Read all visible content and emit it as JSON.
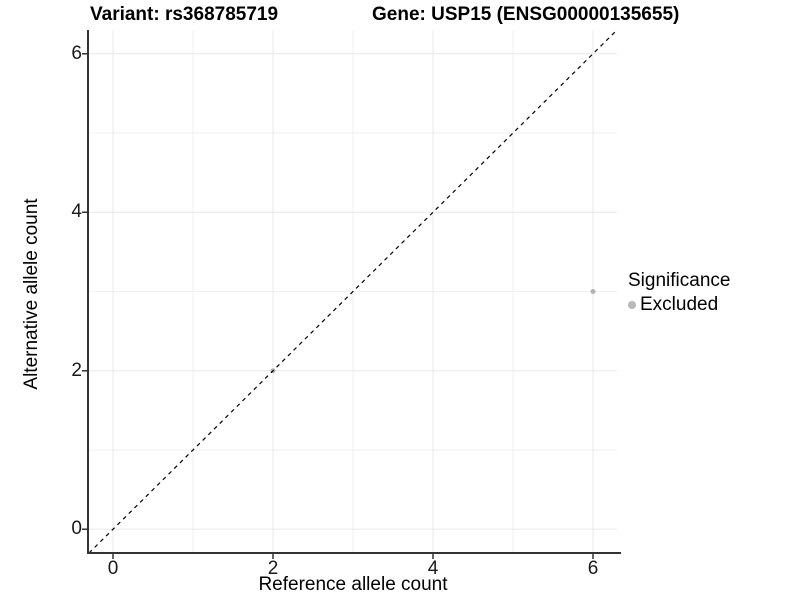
{
  "titles": {
    "variant": "Variant: rs368785719",
    "gene": "Gene: USP15 (ENSG00000135655)"
  },
  "chart_data": {
    "type": "scatter",
    "xlabel": "Reference allele count",
    "ylabel": "Alternative allele count",
    "xlim": [
      -0.3,
      6.3
    ],
    "ylim": [
      -0.3,
      6.3
    ],
    "xticks": [
      0,
      2,
      4,
      6
    ],
    "yticks": [
      0,
      2,
      4,
      6
    ],
    "xminor": [
      1,
      3,
      5
    ],
    "yminor": [
      1,
      3,
      5
    ],
    "grid": true,
    "identity_line": {
      "style": "dashed",
      "color": "#000000",
      "x1": -0.3,
      "y1": -0.3,
      "x2": 6.3,
      "y2": 6.3
    },
    "series": [
      {
        "name": "Excluded",
        "color": "#b3b3b3",
        "points": [
          {
            "x": 2,
            "y": 2
          },
          {
            "x": 6,
            "y": 3
          }
        ]
      }
    ],
    "legend": {
      "title": "Significance",
      "position": "right",
      "items": [
        {
          "label": "Excluded",
          "color": "#b9b9b9"
        }
      ]
    },
    "style": {
      "grid_major_color": "#e8e8e8",
      "grid_minor_color": "#f1f1f1",
      "axis_line_color": "#333333",
      "tick_color": "#333333",
      "point_radius": 2.5
    }
  }
}
